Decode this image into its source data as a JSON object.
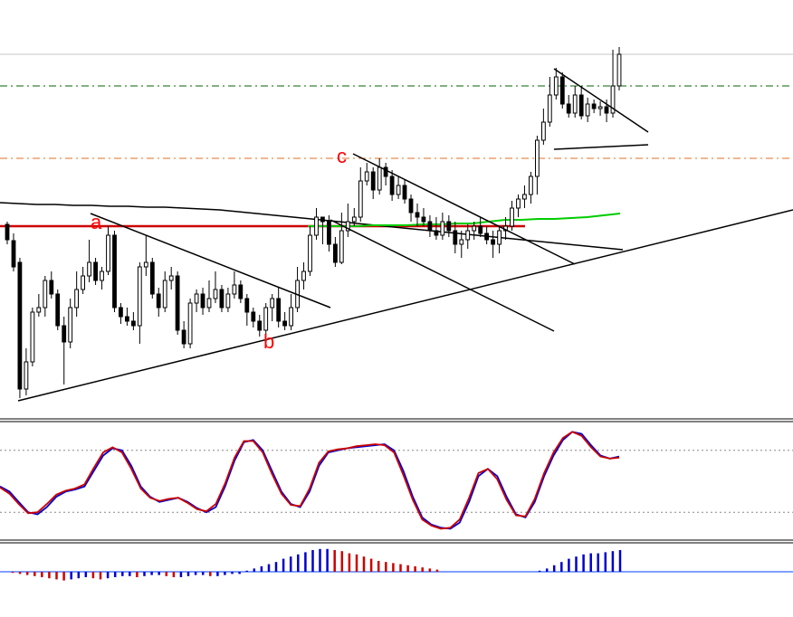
{
  "chart_data": [
    {
      "panel": "price",
      "type": "candlestick",
      "candles": [
        [
          248,
          265,
          270,
          245
        ],
        [
          266,
          295,
          300,
          258
        ],
        [
          290,
          430,
          440,
          285
        ],
        [
          430,
          400,
          437,
          385
        ],
        [
          400,
          345,
          405,
          340
        ],
        [
          345,
          340,
          350,
          325
        ],
        [
          340,
          310,
          350,
          305
        ],
        [
          310,
          325,
          330,
          300
        ],
        [
          325,
          360,
          365,
          320
        ],
        [
          360,
          378,
          425,
          350
        ],
        [
          378,
          340,
          385,
          330
        ],
        [
          340,
          320,
          350,
          300
        ],
        [
          320,
          305,
          325,
          295
        ],
        [
          305,
          290,
          312,
          265
        ],
        [
          290,
          310,
          315,
          285
        ],
        [
          310,
          300,
          320,
          295
        ],
        [
          300,
          260,
          304,
          250
        ],
        [
          260,
          340,
          345,
          255
        ],
        [
          340,
          350,
          358,
          335
        ],
        [
          350,
          355,
          360,
          340
        ],
        [
          355,
          360,
          365,
          345
        ],
        [
          360,
          295,
          380,
          290
        ],
        [
          295,
          290,
          305,
          260
        ],
        [
          290,
          325,
          330,
          285
        ],
        [
          325,
          340,
          350,
          318
        ],
        [
          340,
          310,
          345,
          300
        ],
        [
          310,
          305,
          320,
          295
        ],
        [
          305,
          365,
          370,
          300
        ],
        [
          365,
          380,
          385,
          355
        ],
        [
          380,
          335,
          385,
          330
        ],
        [
          335,
          325,
          345,
          320
        ],
        [
          325,
          340,
          348,
          318
        ],
        [
          340,
          330,
          345,
          310
        ],
        [
          330,
          320,
          335,
          300
        ],
        [
          320,
          340,
          345,
          315
        ],
        [
          340,
          325,
          345,
          318
        ],
        [
          325,
          315,
          330,
          300
        ],
        [
          315,
          330,
          335,
          310
        ],
        [
          330,
          345,
          360,
          325
        ],
        [
          345,
          355,
          362,
          340
        ],
        [
          355,
          365,
          372,
          348
        ],
        [
          365,
          340,
          370,
          335
        ],
        [
          340,
          330,
          355,
          325
        ],
        [
          330,
          355,
          362,
          318
        ],
        [
          355,
          360,
          365,
          345
        ],
        [
          360,
          340,
          365,
          325
        ],
        [
          340,
          310,
          345,
          295
        ],
        [
          310,
          300,
          320,
          290
        ],
        [
          300,
          260,
          305,
          250
        ],
        [
          260,
          240,
          265,
          230
        ],
        [
          240,
          245,
          270,
          240
        ],
        [
          245,
          270,
          278,
          238
        ],
        [
          270,
          290,
          295,
          262
        ],
        [
          290,
          255,
          292,
          235
        ],
        [
          255,
          245,
          262,
          225
        ],
        [
          245,
          240,
          250,
          230
        ],
        [
          240,
          200,
          245,
          185
        ],
        [
          200,
          190,
          205,
          180
        ],
        [
          190,
          210,
          220,
          185
        ],
        [
          210,
          185,
          215,
          175
        ],
        [
          185,
          195,
          205,
          180
        ],
        [
          195,
          215,
          222,
          188
        ],
        [
          215,
          205,
          220,
          195
        ],
        [
          205,
          220,
          225,
          198
        ],
        [
          220,
          235,
          245,
          215
        ],
        [
          235,
          240,
          250,
          225
        ],
        [
          240,
          245,
          250,
          230
        ],
        [
          245,
          255,
          262,
          238
        ],
        [
          255,
          260,
          265,
          240
        ],
        [
          260,
          245,
          265,
          235
        ],
        [
          245,
          255,
          262,
          238
        ],
        [
          255,
          270,
          280,
          245
        ],
        [
          270,
          265,
          285,
          255
        ],
        [
          265,
          255,
          275,
          248
        ],
        [
          255,
          250,
          265,
          245
        ],
        [
          250,
          258,
          262,
          240
        ],
        [
          258,
          265,
          270,
          250
        ],
        [
          265,
          270,
          285,
          255
        ],
        [
          270,
          255,
          280,
          250
        ],
        [
          255,
          250,
          265,
          240
        ],
        [
          250,
          230,
          255,
          222
        ],
        [
          230,
          220,
          240,
          215
        ],
        [
          220,
          215,
          230,
          205
        ],
        [
          215,
          195,
          225,
          190
        ],
        [
          195,
          155,
          215,
          150
        ],
        [
          155,
          135,
          160,
          120
        ],
        [
          135,
          105,
          140,
          85
        ],
        [
          105,
          85,
          110,
          75
        ],
        [
          85,
          115,
          120,
          80
        ],
        [
          115,
          125,
          130,
          105
        ],
        [
          125,
          105,
          130,
          95
        ],
        [
          105,
          128,
          132,
          95
        ],
        [
          128,
          115,
          135,
          108
        ],
        [
          115,
          120,
          125,
          110
        ],
        [
          120,
          118,
          128,
          112
        ],
        [
          118,
          125,
          135,
          110
        ],
        [
          125,
          95,
          130,
          55
        ],
        [
          95,
          60,
          100,
          52
        ]
      ],
      "horizontal_lines": [
        {
          "color": "#006400",
          "style": "dash-dot",
          "price": 95
        },
        {
          "color": "#e07020",
          "style": "dash-dot",
          "price": 175
        },
        {
          "color": "#cc0000",
          "style": "solid",
          "price": 250
        }
      ],
      "moving_averages": [
        {
          "color": "#000000",
          "values": [
            224,
            225,
            226,
            226,
            227,
            227,
            228,
            228,
            229,
            229,
            230,
            231,
            232,
            234,
            236,
            238,
            240,
            242,
            244,
            246,
            248,
            250,
            252,
            254,
            256,
            258,
            260,
            262,
            264,
            266,
            268,
            270,
            272,
            274,
            276
          ]
        },
        {
          "color": "#00cc00",
          "values": [
            250,
            250,
            250,
            250,
            249,
            249,
            249,
            248,
            248,
            247,
            247,
            245,
            243,
            243,
            242,
            242,
            241,
            240,
            238,
            236
          ]
        }
      ],
      "annotations": [
        {
          "text": "a",
          "color": "#ff0000"
        },
        {
          "text": "b",
          "color": "#ff0000"
        },
        {
          "text": "c",
          "color": "#ff0000"
        }
      ]
    },
    {
      "panel": "stochastic",
      "type": "line",
      "levels": [
        20,
        80
      ],
      "series": [
        {
          "color": "#0000cc",
          "values": [
            45,
            40,
            30,
            20,
            18,
            25,
            35,
            40,
            42,
            45,
            60,
            75,
            82,
            80,
            65,
            45,
            35,
            30,
            32,
            34,
            30,
            24,
            20,
            25,
            45,
            70,
            88,
            90,
            80,
            60,
            40,
            28,
            25,
            40,
            65,
            78,
            80,
            82,
            83,
            84,
            85,
            86,
            80,
            60,
            35,
            15,
            8,
            5,
            4,
            10,
            30,
            55,
            62,
            55,
            35,
            18,
            15,
            30,
            55,
            75,
            90,
            98,
            96,
            85,
            75,
            72,
            74
          ]
        },
        {
          "color": "#cc0000",
          "values": [
            44,
            38,
            28,
            19,
            20,
            28,
            37,
            41,
            43,
            47,
            63,
            78,
            83,
            78,
            62,
            43,
            34,
            31,
            33,
            34,
            29,
            23,
            21,
            28,
            48,
            73,
            89,
            89,
            78,
            57,
            38,
            27,
            26,
            43,
            68,
            79,
            81,
            82,
            84,
            85,
            86,
            85,
            78,
            56,
            32,
            13,
            7,
            4,
            5,
            13,
            34,
            58,
            62,
            52,
            32,
            17,
            16,
            33,
            58,
            78,
            92,
            98,
            94,
            83,
            74,
            72,
            73
          ]
        }
      ]
    },
    {
      "panel": "histogram",
      "type": "bar",
      "values": [
        -1,
        -2,
        -3,
        -4,
        -5,
        -6,
        -7,
        -8,
        -7,
        -6,
        -5,
        -6,
        -7,
        -6,
        -5,
        -4,
        -4,
        -5,
        -4,
        -3,
        -3,
        -4,
        -5,
        -5,
        -4,
        -3,
        -3,
        -4,
        -4,
        -3,
        -2,
        -2,
        1,
        3,
        5,
        7,
        9,
        12,
        14,
        16,
        18,
        20,
        21,
        21,
        20,
        19,
        17,
        16,
        14,
        12,
        10,
        9,
        8,
        7,
        6,
        5,
        4,
        3,
        2,
        0,
        0,
        0,
        0,
        0,
        0,
        0,
        0,
        0,
        0,
        0,
        0,
        0,
        1,
        3,
        6,
        9,
        12,
        14,
        16,
        17,
        17,
        18,
        19,
        20
      ],
      "colors": {
        "positive_up": "#0000cc",
        "positive_down": "#cc0000",
        "negative_up": "#0000cc",
        "negative_down": "#cc0000"
      }
    }
  ]
}
